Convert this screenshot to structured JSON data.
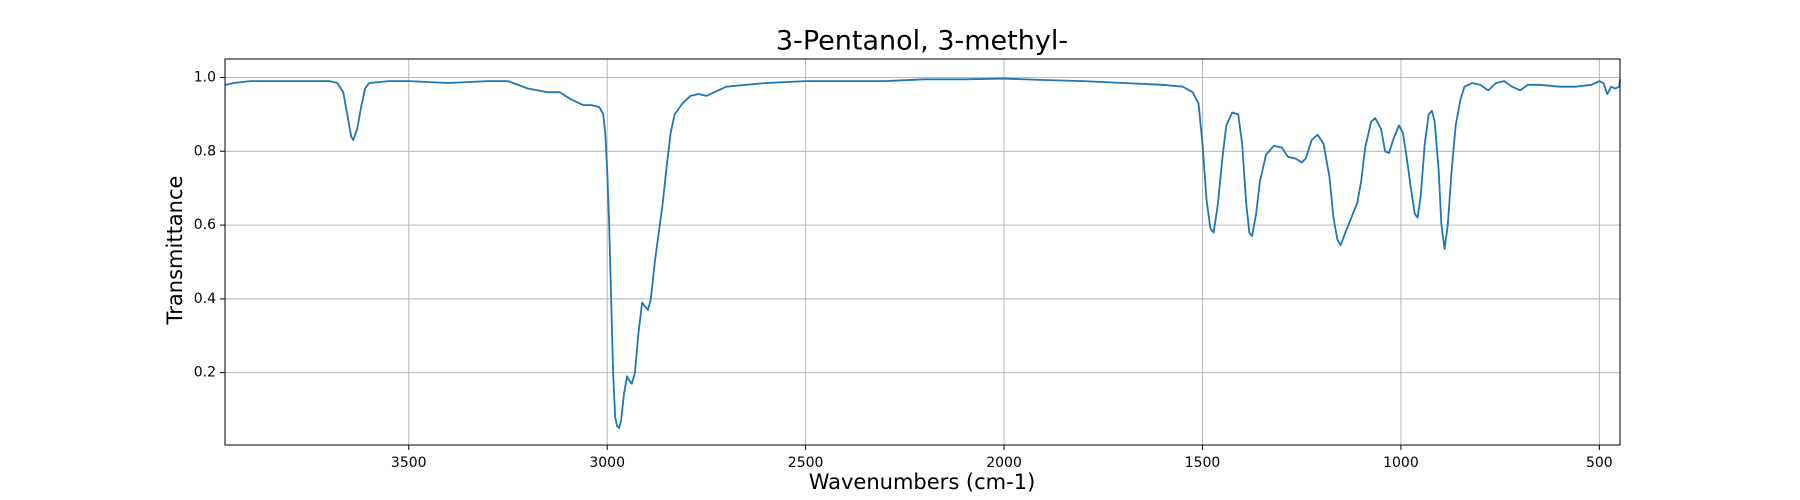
{
  "chart_data": {
    "type": "line",
    "title": "3-Pentanol, 3-methyl-",
    "xlabel": "Wavenumbers (cm-1)",
    "ylabel": "Transmittance",
    "color": "#1f77b4",
    "grid": true,
    "xlim": [
      3963,
      448
    ],
    "ylim": [
      0.004,
      1.05
    ],
    "xticks": [
      3500,
      3000,
      2500,
      2000,
      1500,
      1000,
      500
    ],
    "yticks": [
      0.2,
      0.4,
      0.6,
      0.8,
      {
        "value": 1,
        "label": "1.0"
      }
    ],
    "x": [
      3963,
      3940,
      3900,
      3850,
      3800,
      3750,
      3700,
      3680,
      3665,
      3655,
      3645,
      3640,
      3630,
      3620,
      3610,
      3600,
      3550,
      3500,
      3400,
      3300,
      3250,
      3200,
      3150,
      3120,
      3090,
      3060,
      3040,
      3020,
      3010,
      3005,
      3000,
      2995,
      2990,
      2985,
      2980,
      2975,
      2970,
      2965,
      2958,
      2950,
      2945,
      2938,
      2930,
      2922,
      2912,
      2905,
      2897,
      2890,
      2880,
      2870,
      2860,
      2850,
      2840,
      2830,
      2810,
      2790,
      2770,
      2750,
      2730,
      2700,
      2600,
      2500,
      2400,
      2300,
      2200,
      2100,
      2000,
      1900,
      1800,
      1700,
      1600,
      1550,
      1525,
      1510,
      1500,
      1490,
      1480,
      1472,
      1462,
      1450,
      1440,
      1425,
      1410,
      1400,
      1390,
      1382,
      1375,
      1365,
      1355,
      1340,
      1320,
      1300,
      1285,
      1265,
      1250,
      1240,
      1225,
      1210,
      1195,
      1180,
      1170,
      1160,
      1152,
      1140,
      1125,
      1110,
      1100,
      1090,
      1075,
      1065,
      1050,
      1040,
      1030,
      1020,
      1005,
      995,
      985,
      975,
      965,
      958,
      950,
      940,
      930,
      922,
      915,
      905,
      898,
      890,
      882,
      872,
      862,
      850,
      840,
      820,
      800,
      780,
      760,
      740,
      720,
      700,
      680,
      650,
      600,
      560,
      520,
      500,
      490,
      480,
      470,
      460,
      450,
      448
    ],
    "values": [
      0.98,
      0.985,
      0.99,
      0.99,
      0.99,
      0.99,
      0.99,
      0.985,
      0.96,
      0.9,
      0.84,
      0.83,
      0.86,
      0.92,
      0.97,
      0.985,
      0.99,
      0.99,
      0.985,
      0.99,
      0.99,
      0.97,
      0.96,
      0.96,
      0.94,
      0.925,
      0.925,
      0.92,
      0.9,
      0.85,
      0.75,
      0.6,
      0.4,
      0.2,
      0.08,
      0.055,
      0.05,
      0.07,
      0.14,
      0.19,
      0.18,
      0.17,
      0.2,
      0.3,
      0.39,
      0.38,
      0.37,
      0.4,
      0.5,
      0.58,
      0.66,
      0.76,
      0.85,
      0.9,
      0.93,
      0.95,
      0.955,
      0.95,
      0.96,
      0.975,
      0.985,
      0.99,
      0.99,
      0.99,
      0.995,
      0.995,
      0.997,
      0.993,
      0.99,
      0.985,
      0.98,
      0.975,
      0.96,
      0.93,
      0.82,
      0.67,
      0.59,
      0.58,
      0.65,
      0.78,
      0.87,
      0.905,
      0.9,
      0.82,
      0.66,
      0.58,
      0.57,
      0.63,
      0.72,
      0.79,
      0.815,
      0.81,
      0.785,
      0.78,
      0.77,
      0.78,
      0.83,
      0.845,
      0.82,
      0.73,
      0.62,
      0.56,
      0.545,
      0.58,
      0.62,
      0.66,
      0.72,
      0.81,
      0.88,
      0.89,
      0.86,
      0.8,
      0.795,
      0.83,
      0.87,
      0.85,
      0.78,
      0.7,
      0.63,
      0.62,
      0.68,
      0.82,
      0.9,
      0.91,
      0.88,
      0.75,
      0.6,
      0.535,
      0.6,
      0.75,
      0.87,
      0.94,
      0.975,
      0.985,
      0.98,
      0.965,
      0.985,
      0.99,
      0.975,
      0.965,
      0.98,
      0.98,
      0.975,
      0.975,
      0.98,
      0.99,
      0.985,
      0.955,
      0.975,
      0.97,
      0.975,
      0.995
    ]
  }
}
